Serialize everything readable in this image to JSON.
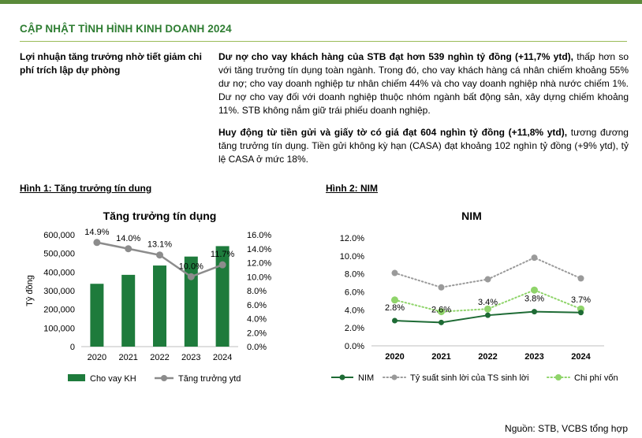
{
  "header": {
    "section_title": "CẬP NHẬT TÌNH HÌNH KINH DOANH 2024"
  },
  "side_heading": "Lợi nhuận tăng trưởng nhờ tiết giảm chi phí trích lập dự phòng",
  "paragraphs": [
    {
      "bold": "Dư nợ cho vay khách hàng của STB đạt hơn 539 nghìn tỷ đồng (+11,7% ytd),",
      "text": " thấp hơn so với tăng trưởng tín dụng toàn ngành. Trong đó, cho vay khách hàng cá nhân chiếm khoảng 55% dư nợ; cho vay doanh nghiệp tư nhân chiếm 44% và cho vay doanh nghiệp nhà nước chiếm 1%. Dư nợ cho vay đối với doanh nghiệp thuộc nhóm ngành bất động sản, xây dựng chiếm khoảng 11%. STB không nắm giữ trái phiếu doanh nghiệp."
    },
    {
      "bold": "Huy động từ tiền gửi và giấy tờ có giá đạt 604 nghìn tỷ đồng (+11,8% ytd),",
      "text": " tương đương tăng trưởng tín dụng. Tiền gửi không kỳ hạn (CASA) đạt khoảng 102 nghìn tỷ đồng (+9% ytd), tỷ lệ CASA ở mức 18%."
    }
  ],
  "figures": {
    "fig1_label": "Hình 1: Tăng trưởng tín dung",
    "fig2_label": "Hình 2: NIM"
  },
  "chart_data": [
    {
      "type": "bar",
      "title": "Tăng trưởng tín dụng",
      "categories": [
        "2020",
        "2021",
        "2022",
        "2023",
        "2024"
      ],
      "ylabel": "Tỷ đồng",
      "ylim": [
        0,
        600000
      ],
      "y_ticks": [
        "0",
        "100,000",
        "200,000",
        "300,000",
        "400,000",
        "500,000",
        "600,000"
      ],
      "y2lim": [
        0,
        16
      ],
      "y2_ticks": [
        "0.0%",
        "2.0%",
        "4.0%",
        "6.0%",
        "8.0%",
        "10.0%",
        "12.0%",
        "14.0%",
        "16.0%"
      ],
      "series": [
        {
          "name": "Cho vay KH",
          "kind": "bar",
          "axis": "left",
          "color": "#1e7b3c",
          "values": [
            337000,
            385000,
            435000,
            483000,
            539000
          ]
        },
        {
          "name": "Tăng trưởng ytd",
          "kind": "line",
          "axis": "right",
          "color": "#8c8c8c",
          "values": [
            14.9,
            14.0,
            13.1,
            10.0,
            11.7
          ],
          "labels": [
            "14.9%",
            "14.0%",
            "13.1%",
            "10.0%",
            "11.7%"
          ]
        }
      ],
      "legend": "bottom"
    },
    {
      "type": "line",
      "title": "NIM",
      "categories": [
        "2020",
        "2021",
        "2022",
        "2023",
        "2024"
      ],
      "ylim": [
        0,
        12
      ],
      "y_ticks": [
        "0.0%",
        "2.0%",
        "4.0%",
        "6.0%",
        "8.0%",
        "10.0%",
        "12.0%"
      ],
      "series": [
        {
          "name": "NIM",
          "style": "solid",
          "color": "#1e6b35",
          "values": [
            2.8,
            2.6,
            3.4,
            3.8,
            3.7
          ],
          "labels": [
            "2.8%",
            "2.6%",
            "3.4%",
            "3.8%",
            "3.7%"
          ]
        },
        {
          "name": "Tỷ suất sinh lời của TS sinh lời",
          "style": "dotted",
          "color": "#9a9a9a",
          "values": [
            8.1,
            6.5,
            7.4,
            9.8,
            7.5
          ]
        },
        {
          "name": "Chi phí vốn",
          "style": "dotted",
          "color": "#8fd46a",
          "values": [
            5.1,
            3.8,
            4.1,
            6.2,
            4.1
          ]
        }
      ],
      "legend": "bottom"
    }
  ],
  "source": "Nguồn: STB, VCBS tổng hợp"
}
